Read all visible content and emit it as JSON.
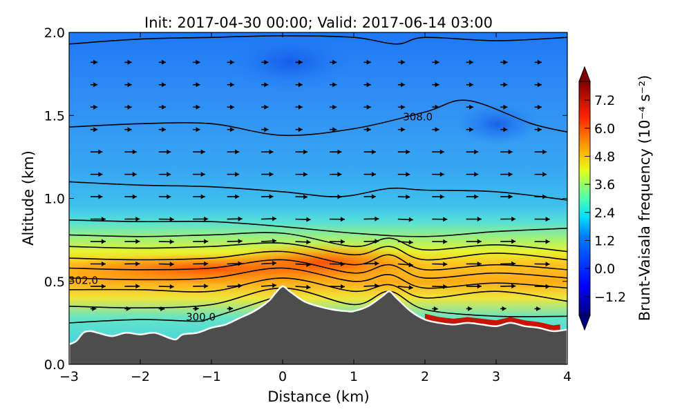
{
  "chart_data": {
    "type": "contourf+quiver",
    "title": "Init: 2017-04-30 00:00; Valid: 2017-06-14 03:00",
    "xlabel": "Distance (km)",
    "ylabel": "Altitude (km)",
    "xlim": [
      -3,
      4
    ],
    "ylim": [
      0.0,
      2.0
    ],
    "xticks": [
      "−3",
      "−2",
      "−1",
      "0",
      "1",
      "2",
      "3",
      "4"
    ],
    "yticks": [
      "0.0",
      "0.5",
      "1.0",
      "1.5",
      "2.0"
    ],
    "colorbar": {
      "label": "Brunt-Vaisala frequency (10⁻⁴ s⁻²)",
      "range": [
        -2.0,
        8.0
      ],
      "ticks": [
        "−1.2",
        "0.0",
        "1.2",
        "2.4",
        "3.6",
        "4.8",
        "6.0",
        "7.2"
      ],
      "extend": "both",
      "colormap": "jet"
    },
    "terrain": {
      "x": [
        -3.0,
        -2.9,
        -2.8,
        -2.7,
        -2.6,
        -2.4,
        -2.2,
        -2.0,
        -1.8,
        -1.6,
        -1.5,
        -1.4,
        -1.2,
        -1.0,
        -0.8,
        -0.6,
        -0.4,
        -0.2,
        -0.1,
        0.0,
        0.1,
        0.3,
        0.5,
        0.7,
        0.9,
        1.0,
        1.2,
        1.4,
        1.5,
        1.6,
        1.8,
        2.0,
        2.2,
        2.4,
        2.6,
        2.8,
        3.0,
        3.2,
        3.4,
        3.6,
        3.8,
        4.0
      ],
      "y": [
        0.12,
        0.14,
        0.19,
        0.2,
        0.19,
        0.17,
        0.19,
        0.18,
        0.19,
        0.16,
        0.15,
        0.18,
        0.19,
        0.22,
        0.24,
        0.28,
        0.32,
        0.38,
        0.43,
        0.47,
        0.44,
        0.38,
        0.35,
        0.33,
        0.32,
        0.32,
        0.35,
        0.41,
        0.44,
        0.4,
        0.32,
        0.27,
        0.25,
        0.24,
        0.25,
        0.24,
        0.23,
        0.25,
        0.23,
        0.22,
        0.2,
        0.21
      ]
    },
    "theta_contours": [
      {
        "level": "300.0",
        "x": [
          -3,
          -2,
          -1.2,
          -1,
          0
        ],
        "y": [
          0.25,
          0.27,
          0.26,
          0.28,
          0.42
        ]
      },
      {
        "level": "",
        "x": [
          -3,
          -2,
          -1,
          0,
          1,
          1.5,
          2,
          3,
          4
        ],
        "y": [
          0.35,
          0.34,
          0.36,
          0.46,
          0.36,
          0.44,
          0.33,
          0.29,
          0.29
        ]
      },
      {
        "level": "302.0",
        "x": [
          -3,
          -2,
          -1,
          0,
          1,
          1.5,
          2,
          3,
          4
        ],
        "y": [
          0.45,
          0.45,
          0.44,
          0.52,
          0.44,
          0.48,
          0.4,
          0.44,
          0.38
        ]
      },
      {
        "level": "",
        "x": [
          -3,
          -2,
          -1,
          0,
          1,
          1.5,
          2,
          3,
          4
        ],
        "y": [
          0.52,
          0.51,
          0.52,
          0.58,
          0.5,
          0.54,
          0.46,
          0.49,
          0.46
        ]
      },
      {
        "level": "",
        "x": [
          -3,
          -2,
          -1,
          0,
          1,
          1.5,
          2,
          3,
          4
        ],
        "y": [
          0.58,
          0.57,
          0.58,
          0.63,
          0.55,
          0.6,
          0.52,
          0.55,
          0.52
        ]
      },
      {
        "level": "",
        "x": [
          -3,
          -2,
          -1,
          0,
          1,
          1.5,
          2,
          3,
          4
        ],
        "y": [
          0.64,
          0.63,
          0.64,
          0.68,
          0.6,
          0.66,
          0.57,
          0.6,
          0.57
        ]
      },
      {
        "level": "",
        "x": [
          -3,
          -2,
          -1,
          0,
          1,
          1.5,
          2,
          3,
          4
        ],
        "y": [
          0.71,
          0.7,
          0.71,
          0.73,
          0.66,
          0.71,
          0.63,
          0.67,
          0.63
        ]
      },
      {
        "level": "",
        "x": [
          -3,
          -2,
          -1,
          0,
          1,
          1.5,
          2,
          3,
          4
        ],
        "y": [
          0.78,
          0.77,
          0.78,
          0.79,
          0.71,
          0.76,
          0.69,
          0.72,
          0.68
        ]
      },
      {
        "level": "",
        "x": [
          -3,
          -2,
          -1,
          0,
          1,
          2,
          3,
          4
        ],
        "y": [
          0.87,
          0.86,
          0.86,
          0.83,
          0.79,
          0.77,
          0.8,
          0.82
        ]
      },
      {
        "level": "",
        "x": [
          -3,
          -2,
          -1,
          0,
          0.8,
          1.5,
          2,
          3,
          4
        ],
        "y": [
          1.1,
          1.08,
          1.07,
          1.04,
          1.01,
          1.06,
          1.05,
          1.04,
          0.99
        ]
      },
      {
        "level": "308.0",
        "x": [
          -3,
          -2,
          -1,
          0,
          1,
          2,
          2.6,
          3.5,
          4
        ],
        "y": [
          1.43,
          1.45,
          1.45,
          1.38,
          1.42,
          1.52,
          1.59,
          1.45,
          1.4
        ]
      },
      {
        "level": "",
        "x": [
          -3,
          -2,
          -1,
          0,
          1,
          1.6,
          2,
          3,
          4
        ],
        "y": [
          1.93,
          1.96,
          1.97,
          1.98,
          1.97,
          1.93,
          1.97,
          1.95,
          1.97
        ]
      }
    ]
  }
}
